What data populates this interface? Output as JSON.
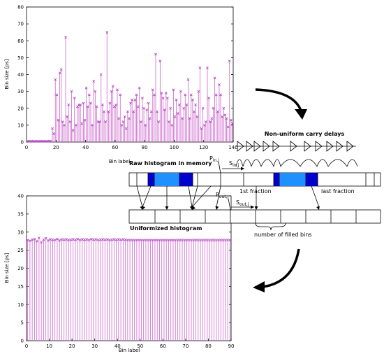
{
  "chart_data": [
    {
      "type": "scatter",
      "title": "",
      "xlabel": "Bin label",
      "ylabel": "Bin size [ps]",
      "xlim": [
        0,
        140
      ],
      "ylim": [
        0,
        80
      ],
      "xticks": [
        "0",
        "20",
        "40",
        "60",
        "80",
        "100",
        "120",
        "140"
      ],
      "yticks": [
        "0",
        "10",
        "20",
        "30",
        "40",
        "50",
        "60",
        "70",
        "80"
      ],
      "style": "impulses with x markers",
      "series": [
        {
          "x": [
            0,
            1,
            2,
            3,
            4,
            5,
            6,
            7,
            8,
            9,
            10,
            11,
            12,
            13,
            14,
            15,
            16,
            17,
            18,
            19,
            20,
            21,
            22,
            23,
            24,
            25,
            26,
            27,
            28,
            29,
            30,
            31,
            32,
            33,
            34,
            35,
            36,
            37,
            38,
            39,
            40,
            41,
            42,
            43,
            44,
            45,
            46,
            47,
            48,
            49,
            50,
            51,
            52,
            53,
            54,
            55,
            56,
            57,
            58,
            59,
            60,
            61,
            62,
            63,
            64,
            65,
            66,
            67,
            68,
            69,
            70,
            71,
            72,
            73,
            74,
            75,
            76,
            77,
            78,
            79,
            80,
            81,
            82,
            83,
            84,
            85,
            86,
            87,
            88,
            89,
            90,
            91,
            92,
            93,
            94,
            95,
            96,
            97,
            98,
            99,
            100,
            101,
            102,
            103,
            104,
            105,
            106,
            107,
            108,
            109,
            110,
            111,
            112,
            113,
            114,
            115,
            116,
            117,
            118,
            119,
            120,
            121,
            122,
            123,
            124,
            125,
            126,
            127,
            128,
            129,
            130,
            131,
            132,
            133,
            134,
            135,
            136,
            137,
            138,
            139
          ],
          "y": [
            0.5,
            0.5,
            0.5,
            0.5,
            0.5,
            0.5,
            0.5,
            0.5,
            0.5,
            0.5,
            0.5,
            0.5,
            0.5,
            0.5,
            0.5,
            0.5,
            0.5,
            8,
            5,
            37,
            28,
            13,
            41,
            43,
            12,
            10,
            62,
            15,
            22,
            12,
            30,
            7,
            26,
            10,
            21,
            22,
            22,
            11,
            23,
            13,
            32,
            21,
            28,
            23,
            10,
            36,
            30,
            21,
            12,
            12,
            40,
            22,
            18,
            12,
            65,
            18,
            23,
            30,
            33,
            21,
            22,
            31,
            14,
            28,
            10,
            12,
            15,
            8,
            18,
            14,
            23,
            25,
            18,
            25,
            28,
            21,
            32,
            12,
            26,
            20,
            10,
            19,
            23,
            14,
            18,
            31,
            28,
            52,
            18,
            12,
            48,
            29,
            26,
            19,
            29,
            26,
            12,
            20,
            10,
            31,
            15,
            25,
            17,
            22,
            30,
            14,
            20,
            28,
            22,
            37,
            14,
            28,
            25,
            18,
            22,
            15,
            30,
            44,
            8,
            20,
            10,
            12,
            44,
            26,
            12,
            14,
            20,
            38,
            28,
            18,
            34,
            28,
            15,
            20,
            16,
            14,
            9,
            48,
            13,
            11
          ]
        }
      ]
    },
    {
      "type": "scatter",
      "title": "",
      "xlabel": "Bin label",
      "ylabel": "Bin size [ps]",
      "xlim": [
        0,
        90
      ],
      "ylim": [
        0,
        40
      ],
      "xticks": [
        "0",
        "10",
        "20",
        "30",
        "40",
        "50",
        "60",
        "70",
        "80",
        "90"
      ],
      "yticks": [
        "0",
        "5",
        "10",
        "15",
        "20",
        "25",
        "30",
        "35",
        "40"
      ],
      "style": "impulses with x markers",
      "series": [
        {
          "x": [
            0,
            1,
            2,
            3,
            4,
            5,
            6,
            7,
            8,
            9,
            10,
            11,
            12,
            13,
            14,
            15,
            16,
            17,
            18,
            19,
            20,
            21,
            22,
            23,
            24,
            25,
            26,
            27,
            28,
            29,
            30,
            31,
            32,
            33,
            34,
            35,
            36,
            37,
            38,
            39,
            40,
            41,
            42,
            43,
            44,
            45,
            46,
            47,
            48,
            49,
            50,
            51,
            52,
            53,
            54,
            55,
            56,
            57,
            58,
            59,
            60,
            61,
            62,
            63,
            64,
            65,
            66,
            67,
            68,
            69,
            70,
            71,
            72,
            73,
            74,
            75,
            76,
            77,
            78,
            79,
            80,
            81,
            82,
            83,
            84,
            85,
            86,
            87,
            88,
            89
          ],
          "y": [
            27.8,
            27.6,
            27.9,
            28.1,
            27.5,
            28.4,
            27.2,
            27.9,
            28.3,
            27.7,
            28,
            27.9,
            27.8,
            28.1,
            27.7,
            28,
            27.9,
            28,
            27.8,
            27.9,
            28,
            27.9,
            28.1,
            27.8,
            28,
            27.9,
            28,
            27.8,
            28.1,
            27.9,
            28,
            27.8,
            27.9,
            28,
            27.9,
            28,
            27.8,
            27.9,
            28,
            27.9,
            28,
            27.9,
            28,
            27.9,
            27.8,
            27.8,
            27.8,
            27.8,
            27.8,
            27.8,
            27.8,
            27.8,
            27.8,
            27.8,
            27.8,
            27.8,
            27.8,
            27.8,
            27.8,
            27.8,
            27.8,
            27.8,
            27.8,
            27.8,
            27.8,
            27.8,
            27.8,
            27.8,
            27.8,
            27.8,
            27.8,
            27.8,
            27.8,
            27.8,
            27.8,
            27.8,
            27.8,
            27.8,
            27.8,
            27.8,
            27.8,
            27.8,
            27.8,
            27.8,
            27.8,
            27.8,
            27.8,
            27.8,
            27.8,
            27.8
          ]
        }
      ]
    }
  ],
  "diagram": {
    "labels": {
      "carry_delays": "Non-uniform carry delays",
      "raw_histogram": "Raw histogram in memory",
      "uniformized": "Uniformized histogram",
      "first_fraction": "1st fraction",
      "last_fraction": "last fraction",
      "filled_bins": "number of filled bins",
      "p_in_base": "P",
      "p_in_sub": "in,j",
      "s_in_base": "S",
      "s_in_sub": "in,j",
      "p_out_base": "P",
      "p_out_sub": "out,j",
      "s_out_base": "S",
      "s_out_sub": "out,j"
    },
    "colors": {
      "light_fill": "#1e90ff",
      "dark_fill": "#0000cd",
      "stem": "#cc66cc",
      "marker": "#b040c0"
    }
  }
}
